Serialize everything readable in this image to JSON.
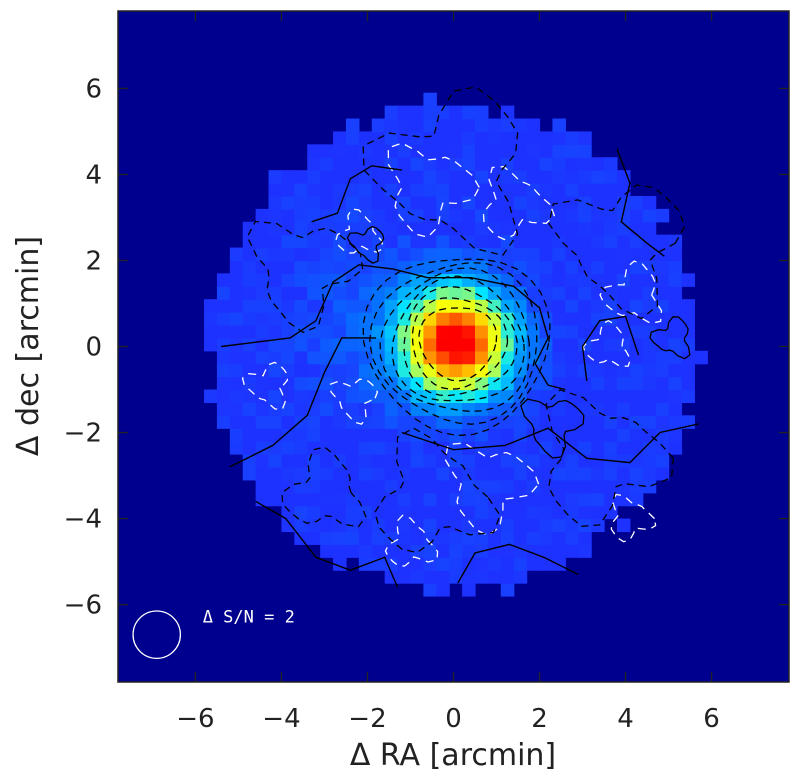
{
  "chart_data": {
    "type": "heatmap",
    "title": "",
    "xlabel": "Δ RA [arcmin]",
    "ylabel": "Δ dec [arcmin]",
    "xlim": [
      -7.8,
      7.8
    ],
    "ylim": [
      -7.8,
      7.8
    ],
    "x_ticks": [
      -6,
      -4,
      -2,
      0,
      2,
      4,
      6
    ],
    "y_ticks": [
      -6,
      -4,
      -2,
      0,
      2,
      4,
      6
    ],
    "x_tick_labels": [
      "−6",
      "−4",
      "−2",
      "0",
      "2",
      "4",
      "6"
    ],
    "y_tick_labels": [
      "−6",
      "−4",
      "−2",
      "0",
      "2",
      "4",
      "6"
    ],
    "map_radius_arcmin": 5.5,
    "peak": {
      "x": 0.1,
      "y": 0.1
    },
    "contour_step_label": "Δ S/N = 2",
    "beam_center": {
      "x": -6.9,
      "y": -6.7
    },
    "beam_radius_arcmin": 0.55,
    "colors": {
      "background": "#00008f",
      "outside_map": "#0a0a9a",
      "positive_contour": "#000000",
      "negative_contour": "#ffffff",
      "colormap": [
        "#1e32ff",
        "#0080ff",
        "#00e5ff",
        "#aaff5a",
        "#ffff00",
        "#ff8000",
        "#ff0000"
      ]
    }
  }
}
